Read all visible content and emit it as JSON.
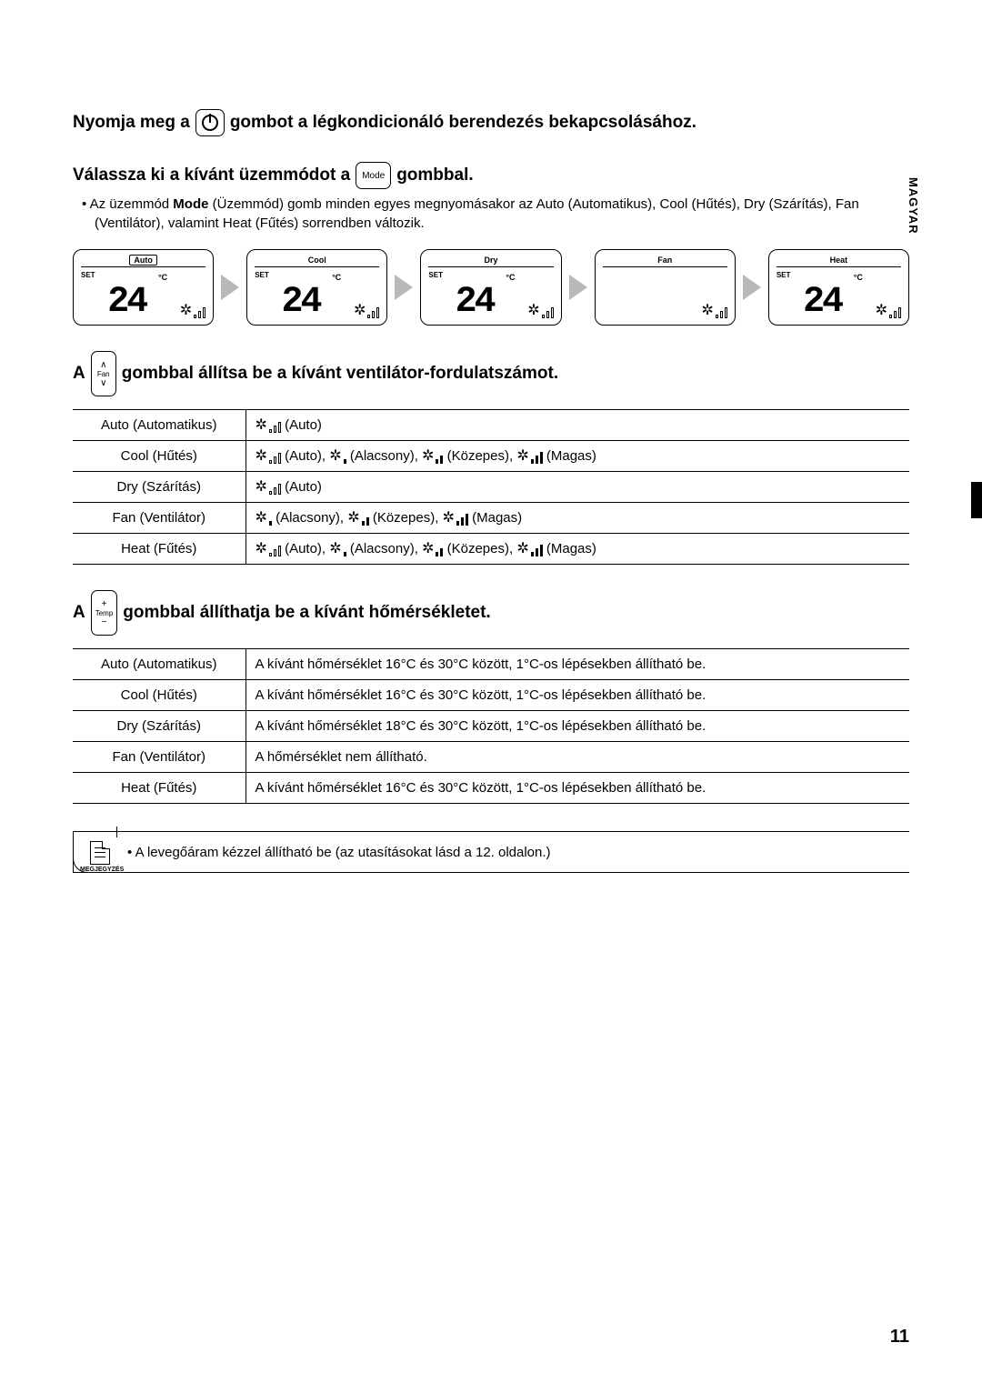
{
  "sideTab": "MAGYAR",
  "step1": {
    "pre": "Nyomja meg a",
    "post": "gombot a légkondicionáló berendezés bekapcsolásához."
  },
  "step2": {
    "pre": "Válassza ki a kívánt üzemmódot a",
    "btn": "Mode",
    "post": "gombbal.",
    "bullet": "Az üzemmód Mode (Üzemmód) gomb minden egyes megnyomásakor az Auto (Automatikus), Cool (Hűtés), Dry (Szárítás), Fan (Ventilátor), valamint Heat (Fűtés) sorrendben változik.",
    "bulletBoldWord": "Mode",
    "modes": [
      {
        "label": "Auto",
        "boxed": true,
        "temp": "24",
        "set": true
      },
      {
        "label": "Cool",
        "boxed": false,
        "temp": "24",
        "set": true
      },
      {
        "label": "Dry",
        "boxed": false,
        "temp": "24",
        "set": true
      },
      {
        "label": "Fan",
        "boxed": false,
        "temp": "",
        "set": false
      },
      {
        "label": "Heat",
        "boxed": false,
        "temp": "24",
        "set": true
      }
    ]
  },
  "step3": {
    "pre": "A",
    "btnTop": "∧",
    "btnMid": "Fan",
    "btnBot": "∨",
    "post": "gombbal állítsa be a kívánt ventilátor-fordulatszámot.",
    "rows": [
      {
        "mode": "Auto (Automatikus)",
        "speeds": [
          {
            "type": "outline",
            "label": "(Auto)"
          }
        ]
      },
      {
        "mode": "Cool (Hűtés)",
        "speeds": [
          {
            "type": "outline",
            "label": "(Auto)"
          },
          {
            "type": "low",
            "label": "(Alacsony)"
          },
          {
            "type": "med",
            "label": "(Közepes)"
          },
          {
            "type": "high",
            "label": "(Magas)"
          }
        ]
      },
      {
        "mode": "Dry (Szárítás)",
        "speeds": [
          {
            "type": "outline",
            "label": "(Auto)"
          }
        ]
      },
      {
        "mode": "Fan (Ventilátor)",
        "speeds": [
          {
            "type": "low",
            "label": "(Alacsony)"
          },
          {
            "type": "med",
            "label": "(Közepes)"
          },
          {
            "type": "high",
            "label": "(Magas)"
          }
        ]
      },
      {
        "mode": "Heat (Fűtés)",
        "speeds": [
          {
            "type": "outline",
            "label": "(Auto)"
          },
          {
            "type": "low",
            "label": "(Alacsony)"
          },
          {
            "type": "med",
            "label": "(Közepes)"
          },
          {
            "type": "high",
            "label": "(Magas)"
          }
        ]
      }
    ]
  },
  "step4": {
    "pre": "A",
    "btnTop": "+",
    "btnMid": "Temp",
    "btnBot": "−",
    "post": "gombbal állíthatja be a kívánt hőmérsékletet.",
    "rows": [
      {
        "mode": "Auto (Automatikus)",
        "desc": "A kívánt hőmérséklet 16°C és 30°C között, 1°C-os lépésekben állítható be."
      },
      {
        "mode": "Cool (Hűtés)",
        "desc": "A kívánt hőmérséklet 16°C és 30°C között, 1°C-os lépésekben állítható be."
      },
      {
        "mode": "Dry (Szárítás)",
        "desc": "A kívánt hőmérséklet 18°C és 30°C között, 1°C-os lépésekben állítható be."
      },
      {
        "mode": "Fan (Ventilátor)",
        "desc": "A hőmérséklet nem állítható."
      },
      {
        "mode": "Heat (Fűtés)",
        "desc": "A kívánt hőmérséklet 16°C és 30°C között, 1°C-os lépésekben állítható be."
      }
    ]
  },
  "note": {
    "iconLabel": "MEGJEGYZÉS",
    "text": "A levegőáram kézzel állítható be (az utasításokat lásd a 12. oldalon.)"
  },
  "pageNumber": "11"
}
